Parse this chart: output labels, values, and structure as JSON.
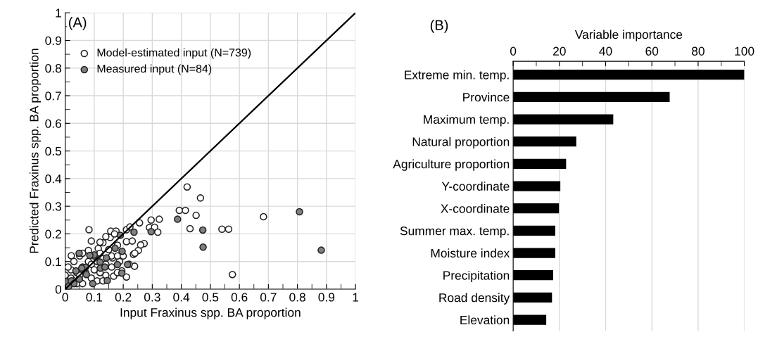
{
  "chart_data": [
    {
      "type": "scatter",
      "xlabel": "Input Fraxinus spp. BA proportion",
      "ylabel": "Predicted Fraxinus spp. BA proportion",
      "annotations": [
        "(A)"
      ],
      "xlim": [
        0,
        1
      ],
      "ylim": [
        0,
        1
      ],
      "xticks": [
        0,
        {
          "value": 0.05,
          "label": null
        },
        0.1,
        {
          "value": 0.15,
          "label": null
        },
        0.2,
        {
          "value": 0.25,
          "label": null
        },
        0.3,
        {
          "value": 0.35,
          "label": null
        },
        0.4,
        {
          "value": 0.45,
          "label": null
        },
        0.5,
        {
          "value": 0.55,
          "label": null
        },
        0.6,
        {
          "value": 0.65,
          "label": null
        },
        0.7,
        {
          "value": 0.75,
          "label": null
        },
        0.8,
        {
          "value": 0.85,
          "label": null
        },
        0.9,
        {
          "value": 0.95,
          "label": null
        },
        1
      ],
      "yticks": [
        0,
        {
          "value": 0.05,
          "label": null
        },
        0.1,
        {
          "value": 0.15,
          "label": null
        },
        0.2,
        {
          "value": 0.25,
          "label": null
        },
        0.3,
        {
          "value": 0.35,
          "label": null
        },
        0.4,
        {
          "value": 0.45,
          "label": null
        },
        0.5,
        {
          "value": 0.55,
          "label": null
        },
        0.6,
        {
          "value": 0.65,
          "label": null
        },
        0.7,
        {
          "value": 0.75,
          "label": null
        },
        0.8,
        {
          "value": 0.85,
          "label": null
        },
        0.9,
        {
          "value": 0.95,
          "label": null
        },
        1
      ],
      "grid": true,
      "legend": "top left",
      "series": [
        {
          "name": "Model-estimated input (N=739)",
          "color": "#ffffff",
          "marker": "circle",
          "x": [
            0.42,
            0.466,
            0.393,
            0.414,
            0.451,
            0.43,
            0.54,
            0.563,
            0.683,
            0.576,
            0.082,
            0.09,
            0.157,
            0.175,
            0.155,
            0.211,
            0.223,
            0.256,
            0.296,
            0.324,
            0.29,
            0.308,
            0.319,
            0.272,
            0.252,
            0.235,
            0.239,
            0.167,
            0.211,
            0.195,
            0.13,
            0.114,
            0.15,
            0.18,
            0.211,
            0.231,
            0.163,
            0.187,
            0.021,
            0.01,
            0.02,
            0.03,
            0.04,
            0.05,
            0.06,
            0.07,
            0.08,
            0.09,
            0.1,
            0.11,
            0.12,
            0.13,
            0.14,
            0.03,
            0.02,
            0.05,
            0.06,
            0.08,
            0.1,
            0.12,
            0.14,
            0.16,
            0.18,
            0.0,
            0.01,
            0.04,
            0.06,
            0.09,
            0.11,
            0.13,
            0.16,
            0.18,
            0.2,
            0.22,
            0.24,
            0.26,
            0.12,
            0.14,
            0.17
          ],
          "values": [
            0.37,
            0.33,
            0.285,
            0.285,
            0.267,
            0.219,
            0.217,
            0.217,
            0.262,
            0.053,
            0.215,
            0.174,
            0.21,
            0.21,
            0.187,
            0.215,
            0.225,
            0.24,
            0.25,
            0.253,
            0.223,
            0.224,
            0.206,
            0.165,
            0.14,
            0.126,
            0.083,
            0.047,
            0.044,
            0.066,
            0.168,
            0.147,
            0.143,
            0.159,
            0.172,
            0.174,
            0.113,
            0.1,
            0.121,
            0.02,
            0.04,
            0.03,
            0.06,
            0.05,
            0.08,
            0.06,
            0.1,
            0.09,
            0.12,
            0.1,
            0.13,
            0.11,
            0.09,
            0.1,
            0.07,
            0.12,
            0.13,
            0.14,
            0.07,
            0.06,
            0.05,
            0.08,
            0.06,
            0.05,
            0.08,
            0.02,
            0.02,
            0.04,
            0.03,
            0.03,
            0.12,
            0.12,
            0.12,
            0.09,
            0.13,
            0.16,
            0.17,
            0.19,
            0.2
          ]
        },
        {
          "name": "Measured input (N=84)",
          "color": "#808080",
          "marker": "circle",
          "x": [
            0.387,
            0.474,
            0.475,
            0.807,
            0.882,
            0.237,
            0.19,
            0.172,
            0.196,
            0.142,
            0.12,
            0.1,
            0.048,
            0.037,
            0.07,
            0.18,
            0.215,
            0.195,
            0.145,
            0.095,
            0.001,
            0.049,
            0.073,
            0.021,
            0.296,
            0.121,
            0.085,
            0.057,
            0.03,
            0.012,
            0.137
          ],
          "values": [
            0.253,
            0.214,
            0.152,
            0.28,
            0.141,
            0.206,
            0.195,
            0.148,
            0.137,
            0.113,
            0.098,
            0.124,
            0.13,
            0.066,
            0.079,
            0.089,
            0.089,
            0.058,
            0.031,
            0.02,
            0.028,
            0.036,
            0.053,
            0.03,
            0.208,
            0.076,
            0.122,
            0.076,
            0.02,
            0.01,
            0.08
          ]
        },
        {
          "type": "line",
          "color": "#000000",
          "x": [
            0,
            1
          ],
          "values": [
            0,
            1
          ]
        }
      ]
    },
    {
      "type": "bar",
      "orientation": "horizontal",
      "xlabel": "Variable importance",
      "annotations": [
        "(B)"
      ],
      "xlim": [
        0,
        100
      ],
      "xticks": [
        0,
        {
          "value": 10,
          "label": null
        },
        20,
        {
          "value": 30,
          "label": null
        },
        40,
        {
          "value": 50,
          "label": null
        },
        60,
        {
          "value": 70,
          "label": null
        },
        80,
        {
          "value": 90,
          "label": null
        },
        100
      ],
      "grid": "x",
      "color": "#000000",
      "categories": [
        "Extreme min. temp.",
        "Province",
        "Maximum temp.",
        "Natural proportion",
        "Agriculture proportion",
        "Y-coordinate",
        "X-coordinate",
        "Summer max. temp.",
        "Moisture index",
        "Precipitation",
        "Road density",
        "Elevation"
      ],
      "values": [
        100,
        67.7,
        43.3,
        27.3,
        22.9,
        20.4,
        19.8,
        18.2,
        18.2,
        17.3,
        16.8,
        14.3
      ]
    }
  ]
}
